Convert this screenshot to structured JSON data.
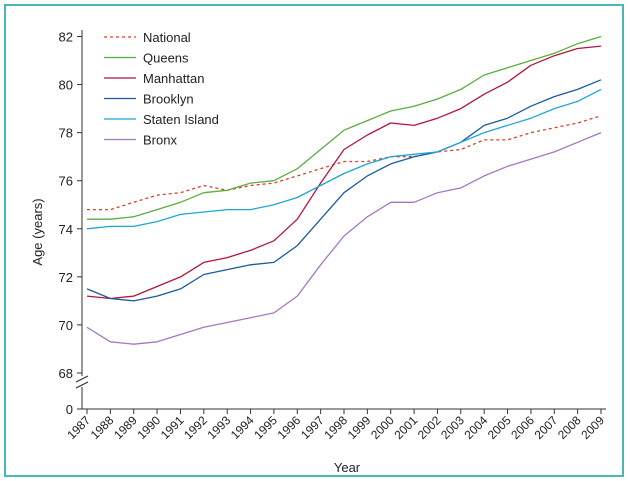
{
  "chart_data": {
    "type": "line",
    "xlabel": "Year",
    "ylabel": "Age (years)",
    "x": [
      "1987",
      "1988",
      "1989",
      "1990",
      "1991",
      "1992",
      "1993",
      "1994",
      "1995",
      "1996",
      "1997",
      "1998",
      "1999",
      "2000",
      "2001",
      "2002",
      "2003",
      "2004",
      "2005",
      "2006",
      "2007",
      "2008",
      "2009"
    ],
    "yticks": [
      68,
      70,
      72,
      74,
      76,
      78,
      80,
      82
    ],
    "ylim": [
      68,
      82
    ],
    "y_axis_break": true,
    "y_zero_label": "0",
    "grid": false,
    "legend_position": "top-left",
    "series": [
      {
        "name": "National",
        "color": "#e03c31",
        "dashed": true,
        "values": [
          74.8,
          74.8,
          75.1,
          75.4,
          75.5,
          75.8,
          75.6,
          75.8,
          75.9,
          76.2,
          76.5,
          76.8,
          76.8,
          77.0,
          77.0,
          77.2,
          77.3,
          77.7,
          77.7,
          78.0,
          78.2,
          78.4,
          78.7
        ]
      },
      {
        "name": "Queens",
        "color": "#5aad3f",
        "dashed": false,
        "values": [
          74.4,
          74.4,
          74.5,
          74.8,
          75.1,
          75.5,
          75.6,
          75.9,
          76.0,
          76.5,
          77.3,
          78.1,
          78.5,
          78.9,
          79.1,
          79.4,
          79.8,
          80.4,
          80.7,
          81.0,
          81.3,
          81.7,
          82.0
        ]
      },
      {
        "name": "Manhattan",
        "color": "#b5143c",
        "dashed": false,
        "values": [
          71.2,
          71.1,
          71.2,
          71.6,
          72.0,
          72.6,
          72.8,
          73.1,
          73.5,
          74.4,
          75.9,
          77.3,
          77.9,
          78.4,
          78.3,
          78.6,
          79.0,
          79.6,
          80.1,
          80.8,
          81.2,
          81.5,
          81.6
        ]
      },
      {
        "name": "Brooklyn",
        "color": "#1b5aa0",
        "dashed": false,
        "values": [
          71.5,
          71.1,
          71.0,
          71.2,
          71.5,
          72.1,
          72.3,
          72.5,
          72.6,
          73.3,
          74.4,
          75.5,
          76.2,
          76.7,
          77.0,
          77.2,
          77.6,
          78.3,
          78.6,
          79.1,
          79.5,
          79.8,
          80.2
        ]
      },
      {
        "name": "Staten Island",
        "color": "#1ea6d6",
        "dashed": false,
        "values": [
          74.0,
          74.1,
          74.1,
          74.3,
          74.6,
          74.7,
          74.8,
          74.8,
          75.0,
          75.3,
          75.8,
          76.3,
          76.7,
          77.0,
          77.1,
          77.2,
          77.6,
          78.0,
          78.3,
          78.6,
          79.0,
          79.3,
          79.8
        ]
      },
      {
        "name": "Bronx",
        "color": "#a478c0",
        "dashed": false,
        "values": [
          69.9,
          69.3,
          69.2,
          69.3,
          69.6,
          69.9,
          70.1,
          70.3,
          70.5,
          71.2,
          72.5,
          73.7,
          74.5,
          75.1,
          75.1,
          75.5,
          75.7,
          76.2,
          76.6,
          76.9,
          77.2,
          77.6,
          78.0
        ]
      }
    ]
  }
}
